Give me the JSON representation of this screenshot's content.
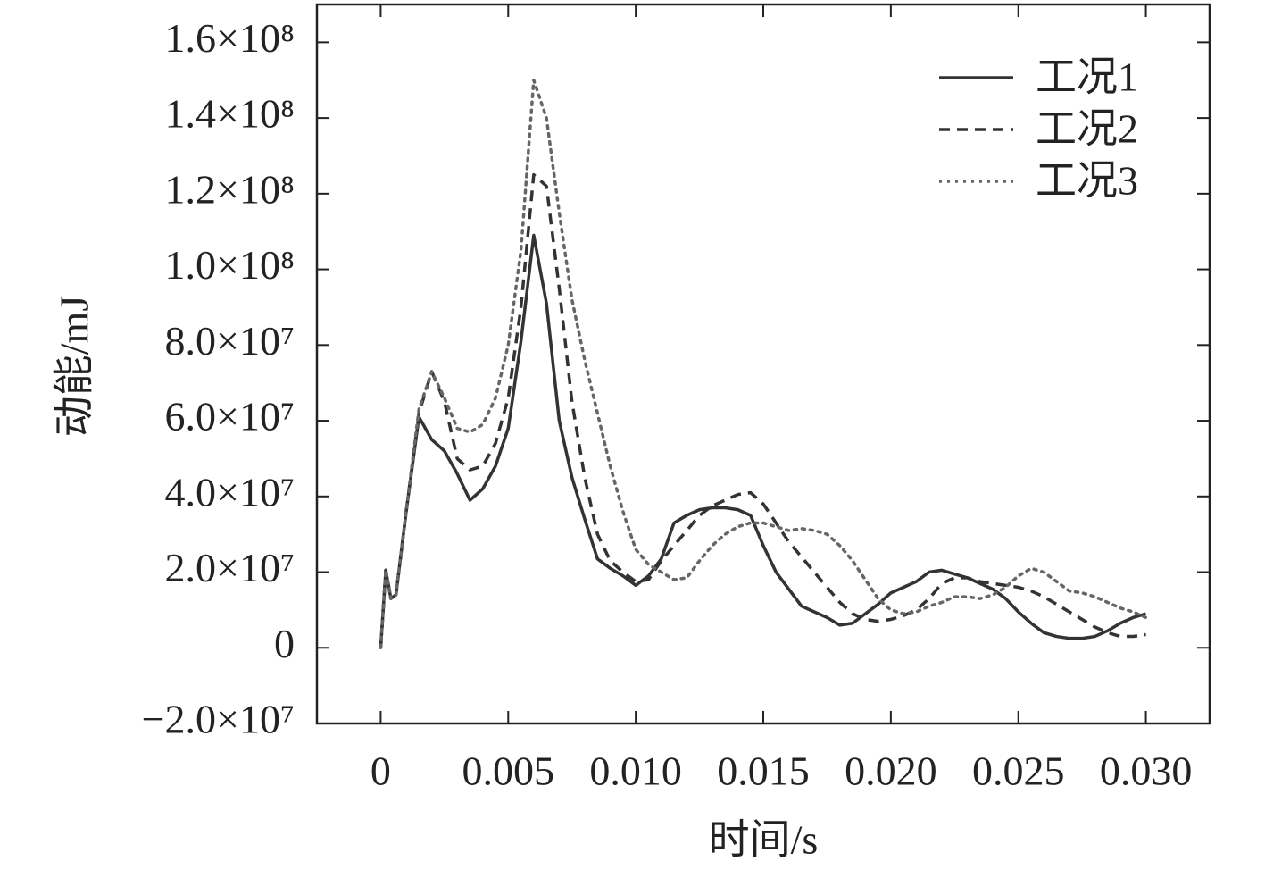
{
  "chart_data": {
    "type": "line",
    "x_label": "时间/s",
    "y_label": "动能/mJ",
    "x": [
      0,
      0.0002,
      0.0004,
      0.0006,
      0.001,
      0.0015,
      0.002,
      0.0025,
      0.003,
      0.0035,
      0.004,
      0.0045,
      0.005,
      0.0055,
      0.006,
      0.0065,
      0.007,
      0.0075,
      0.008,
      0.0085,
      0.009,
      0.0095,
      0.01,
      0.0105,
      0.011,
      0.0115,
      0.012,
      0.0125,
      0.013,
      0.0135,
      0.014,
      0.0145,
      0.015,
      0.0155,
      0.016,
      0.0165,
      0.017,
      0.0175,
      0.018,
      0.0185,
      0.019,
      0.0195,
      0.02,
      0.0205,
      0.021,
      0.0215,
      0.022,
      0.0225,
      0.023,
      0.0235,
      0.024,
      0.0245,
      0.025,
      0.0255,
      0.026,
      0.0265,
      0.027,
      0.0275,
      0.028,
      0.0285,
      0.029,
      0.0295,
      0.03
    ],
    "series": [
      {
        "name": "工况1",
        "color": "#333333",
        "dash": "solid",
        "values": [
          0,
          20500000.0,
          13000000.0,
          14000000.0,
          36000000.0,
          61000000.0,
          55000000.0,
          52000000.0,
          46000000.0,
          39000000.0,
          42000000.0,
          48000000.0,
          58000000.0,
          81000000.0,
          109000000.0,
          91000000.0,
          60000000.0,
          45000000.0,
          34000000.0,
          23500000.0,
          21000000.0,
          19000000.0,
          16500000.0,
          19000000.0,
          23500000.0,
          33000000.0,
          35000000.0,
          36500000.0,
          37000000.0,
          37000000.0,
          36500000.0,
          35000000.0,
          27000000.0,
          20000000.0,
          15500000.0,
          11000000.0,
          9500000.0,
          8000000.0,
          6000000.0,
          6500000.0,
          9000000.0,
          11500000.0,
          14500000.0,
          16000000.0,
          17500000.0,
          20000000.0,
          20500000.0,
          19500000.0,
          18500000.0,
          17000000.0,
          15500000.0,
          13000000.0,
          9500000.0,
          6500000.0,
          4000000.0,
          3000000.0,
          2500000.0,
          2500000.0,
          3000000.0,
          4500000.0,
          6500000.0,
          8000000.0,
          9000000.0
        ]
      },
      {
        "name": "工况2",
        "color": "#333333",
        "dash": "dashed",
        "values": [
          0,
          20500000.0,
          13000000.0,
          14000000.0,
          36000000.0,
          62000000.0,
          73000000.0,
          65000000.0,
          50000000.0,
          47000000.0,
          48000000.0,
          54000000.0,
          66000000.0,
          90000000.0,
          125000000.0,
          122000000.0,
          95000000.0,
          65000000.0,
          45000000.0,
          30000000.0,
          23000000.0,
          20000000.0,
          17500000.0,
          18000000.0,
          23000000.0,
          27000000.0,
          31000000.0,
          35000000.0,
          37500000.0,
          39000000.0,
          40500000.0,
          41000000.0,
          38000000.0,
          33000000.0,
          28000000.0,
          24000000.0,
          20000000.0,
          16000000.0,
          12000000.0,
          9000000.0,
          7500000.0,
          7000000.0,
          7500000.0,
          8500000.0,
          10000000.0,
          13000000.0,
          17000000.0,
          18500000.0,
          18500000.0,
          17500000.0,
          17000000.0,
          16500000.0,
          16000000.0,
          15000000.0,
          13500000.0,
          11500000.0,
          9500000.0,
          7500000.0,
          5500000.0,
          4000000.0,
          3000000.0,
          3000000.0,
          3500000.0
        ]
      },
      {
        "name": "工况3",
        "color": "#666666",
        "dash": "dotted",
        "values": [
          0,
          20500000.0,
          13000000.0,
          14000000.0,
          36000000.0,
          63000000.0,
          73000000.0,
          66000000.0,
          58000000.0,
          57000000.0,
          59000000.0,
          66000000.0,
          80000000.0,
          105000000.0,
          150000000.0,
          140000000.0,
          115000000.0,
          92000000.0,
          76000000.0,
          62000000.0,
          48000000.0,
          36000000.0,
          26000000.0,
          22000000.0,
          20000000.0,
          18000000.0,
          18500000.0,
          23000000.0,
          27000000.0,
          30000000.0,
          32000000.0,
          33000000.0,
          33000000.0,
          32000000.0,
          31000000.0,
          31500000.0,
          31000000.0,
          30000000.0,
          27000000.0,
          23000000.0,
          18000000.0,
          13000000.0,
          10000000.0,
          9000000.0,
          9500000.0,
          11000000.0,
          12000000.0,
          13500000.0,
          13500000.0,
          13000000.0,
          14000000.0,
          16000000.0,
          19000000.0,
          21000000.0,
          20000000.0,
          17500000.0,
          15000000.0,
          14500000.0,
          13500000.0,
          12000000.0,
          10500000.0,
          9500000.0,
          8000000.0
        ]
      }
    ],
    "xlim": [
      -0.0025,
      0.0325
    ],
    "xticks": [
      0,
      0.005,
      {
        "value": 0.01,
        "label": "0.010"
      },
      0.015,
      {
        "value": 0.02,
        "label": "0.020"
      },
      0.025,
      {
        "value": 0.03,
        "label": "0.030"
      }
    ],
    "ylim": [
      -20000000.0,
      170000000.0
    ],
    "yticks": [
      {
        "value": -20000000.0,
        "label": "−2.0×10⁷"
      },
      0,
      {
        "value": 20000000.0,
        "label": "2.0×10⁷"
      },
      {
        "value": 40000000.0,
        "label": "4.0×10⁷"
      },
      {
        "value": 60000000.0,
        "label": "6.0×10⁷"
      },
      {
        "value": 80000000.0,
        "label": "8.0×10⁷"
      },
      {
        "value": 100000000.0,
        "label": "1.0×10⁸"
      },
      {
        "value": 120000000.0,
        "label": "1.2×10⁸"
      },
      {
        "value": 140000000.0,
        "label": "1.4×10⁸"
      },
      {
        "value": 160000000.0,
        "label": "1.6×10⁸"
      }
    ],
    "grid": false,
    "legend": "upper right"
  }
}
